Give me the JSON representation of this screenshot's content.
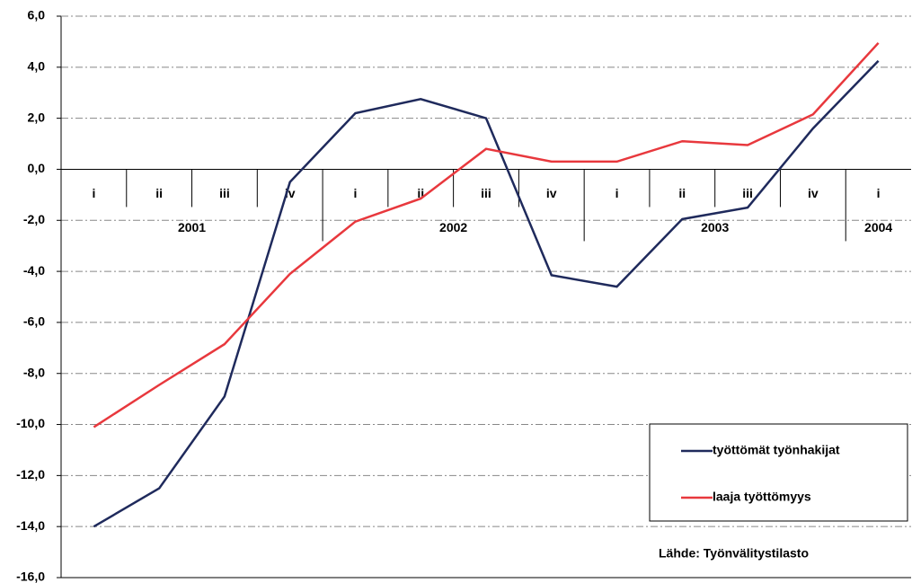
{
  "chart_data": {
    "type": "line",
    "category_groups": [
      {
        "name": "2001",
        "categories": [
          "i",
          "ii",
          "iii",
          "iv"
        ]
      },
      {
        "name": "2002",
        "categories": [
          "i",
          "ii",
          "iii",
          "iv"
        ]
      },
      {
        "name": "2003",
        "categories": [
          "i",
          "ii",
          "iii",
          "iv"
        ]
      },
      {
        "name": "2004",
        "categories": [
          "i"
        ]
      }
    ],
    "series": [
      {
        "name": "työttömät työnhakijat",
        "color": "#1f2a5c",
        "values": [
          -14.0,
          -12.5,
          -8.9,
          -0.5,
          2.2,
          2.75,
          2.0,
          -4.15,
          -4.6,
          -1.95,
          -1.5,
          1.6,
          4.25
        ]
      },
      {
        "name": "laaja työttömyys",
        "color": "#e8383d",
        "values": [
          -10.1,
          -8.45,
          -6.85,
          -4.1,
          -2.05,
          -1.15,
          0.8,
          0.3,
          0.3,
          1.1,
          0.95,
          2.15,
          4.95
        ]
      }
    ],
    "ylim": [
      -16,
      6
    ],
    "yticks": [
      {
        "value": -16,
        "label": "-16,0"
      },
      {
        "value": -14,
        "label": "-14,0"
      },
      {
        "value": -12,
        "label": "-12,0"
      },
      {
        "value": -10,
        "label": "-10,0"
      },
      {
        "value": -8,
        "label": "-8,0"
      },
      {
        "value": -6,
        "label": "-6,0"
      },
      {
        "value": -4,
        "label": "-4,0"
      },
      {
        "value": -2,
        "label": "-2,0"
      },
      {
        "value": 0,
        "label": "0,0"
      },
      {
        "value": 2,
        "label": "2,0"
      },
      {
        "value": 4,
        "label": "4,0"
      },
      {
        "value": 6,
        "label": "6,0"
      }
    ],
    "grid": true,
    "legend": "lower right",
    "annotation": "Lähde: Työnvälitystilasto"
  }
}
